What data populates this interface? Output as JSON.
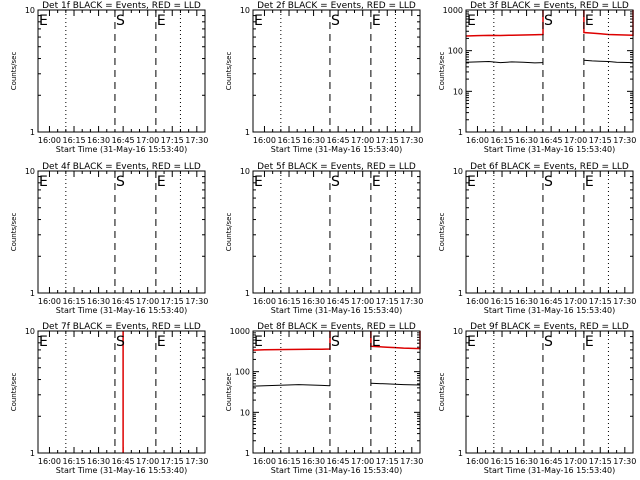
{
  "chart_data": [
    {
      "type": "line",
      "title": "Det 1f BLACK = Events, RED = LLD",
      "xlabel": "Start Time (31-May-16 15:53:40)",
      "ylabel": "Counts/sec",
      "scale_y": "log",
      "ylim": [
        1,
        10
      ],
      "ytick_labels": [
        "1",
        "10"
      ],
      "xlim": [
        "15:53",
        "17:35"
      ],
      "xtick_labels": [
        "16:00",
        "16:15",
        "16:30",
        "16:45",
        "17:00",
        "17:15",
        "17:30"
      ],
      "markers": [
        {
          "label": "E",
          "time": "15:53",
          "style": "none"
        },
        {
          "label": "",
          "time": "16:10",
          "style": "dotted"
        },
        {
          "label": "S",
          "time": "16:40",
          "style": "dashed"
        },
        {
          "label": "E",
          "time": "17:05",
          "style": "dashed"
        },
        {
          "label": "",
          "time": "17:20",
          "style": "dotted"
        }
      ],
      "series": []
    },
    {
      "type": "line",
      "title": "Det 2f BLACK = Events, RED = LLD",
      "xlabel": "Start Time (31-May-16 15:53:40)",
      "ylabel": "Counts/sec",
      "scale_y": "log",
      "ylim": [
        1,
        10
      ],
      "ytick_labels": [
        "1",
        "10"
      ],
      "xlim": [
        "15:53",
        "17:35"
      ],
      "xtick_labels": [
        "16:00",
        "16:15",
        "16:30",
        "16:45",
        "17:00",
        "17:15",
        "17:30"
      ],
      "markers": [
        {
          "label": "E",
          "time": "15:53",
          "style": "none"
        },
        {
          "label": "",
          "time": "16:10",
          "style": "dotted"
        },
        {
          "label": "S",
          "time": "16:40",
          "style": "dashed"
        },
        {
          "label": "E",
          "time": "17:05",
          "style": "dashed"
        },
        {
          "label": "",
          "time": "17:20",
          "style": "dotted"
        }
      ],
      "series": []
    },
    {
      "type": "line",
      "title": "Det 3f BLACK = Events, RED = LLD",
      "xlabel": "Start Time (31-May-16 15:53:40)",
      "ylabel": "Counts/sec",
      "scale_y": "log",
      "ylim": [
        1,
        1000
      ],
      "ytick_labels": [
        "1",
        "10",
        "100",
        "1000"
      ],
      "xlim": [
        "15:53",
        "17:35"
      ],
      "xtick_labels": [
        "16:00",
        "16:15",
        "16:30",
        "16:45",
        "17:00",
        "17:15",
        "17:30"
      ],
      "markers": [
        {
          "label": "E",
          "time": "15:53",
          "style": "none"
        },
        {
          "label": "",
          "time": "16:10",
          "style": "dotted"
        },
        {
          "label": "S",
          "time": "16:40",
          "style": "dashed"
        },
        {
          "label": "E",
          "time": "17:05",
          "style": "dashed"
        },
        {
          "label": "",
          "time": "17:20",
          "style": "dotted"
        }
      ],
      "series": [
        {
          "color": "#000000",
          "segments": [
            {
              "x": [
                "15:53",
                "16:00",
                "16:07",
                "16:14",
                "16:21",
                "16:28",
                "16:35",
                "16:40"
              ],
              "y": [
                52,
                53,
                54,
                51,
                53,
                52,
                50,
                51
              ]
            },
            {
              "x": [
                "17:05",
                "17:10",
                "17:15",
                "17:20",
                "17:25",
                "17:35"
              ],
              "y": [
                58,
                56,
                55,
                54,
                52,
                51
              ]
            }
          ]
        },
        {
          "color": "#dd0000",
          "segments": [
            {
              "x": [
                "15:53",
                "16:00",
                "16:07",
                "16:14",
                "16:21",
                "16:28",
                "16:35",
                "16:40",
                "16:40"
              ],
              "y": [
                230,
                235,
                238,
                236,
                240,
                243,
                245,
                250,
                1000
              ]
            },
            {
              "x": [
                "17:05",
                "17:05",
                "17:10",
                "17:15",
                "17:20",
                "17:25",
                "17:35",
                "17:35"
              ],
              "y": [
                1000,
                280,
                270,
                260,
                250,
                245,
                240,
                1000
              ]
            }
          ]
        }
      ]
    },
    {
      "type": "line",
      "title": "Det 4f BLACK = Events, RED = LLD",
      "xlabel": "Start Time (31-May-16 15:53:40)",
      "ylabel": "Counts/sec",
      "scale_y": "log",
      "ylim": [
        1,
        10
      ],
      "ytick_labels": [
        "1",
        "10"
      ],
      "xlim": [
        "15:53",
        "17:35"
      ],
      "xtick_labels": [
        "16:00",
        "16:15",
        "16:30",
        "16:45",
        "17:00",
        "17:15",
        "17:30"
      ],
      "markers": [
        {
          "label": "E",
          "time": "15:53",
          "style": "none"
        },
        {
          "label": "",
          "time": "16:10",
          "style": "dotted"
        },
        {
          "label": "S",
          "time": "16:40",
          "style": "dashed"
        },
        {
          "label": "E",
          "time": "17:05",
          "style": "dashed"
        },
        {
          "label": "",
          "time": "17:20",
          "style": "dotted"
        }
      ],
      "series": []
    },
    {
      "type": "line",
      "title": "Det 5f BLACK = Events, RED = LLD",
      "xlabel": "Start Time (31-May-16 15:53:40)",
      "ylabel": "Counts/sec",
      "scale_y": "log",
      "ylim": [
        1,
        10
      ],
      "ytick_labels": [
        "1",
        "10"
      ],
      "xlim": [
        "15:53",
        "17:35"
      ],
      "xtick_labels": [
        "16:00",
        "16:15",
        "16:30",
        "16:45",
        "17:00",
        "17:15",
        "17:30"
      ],
      "markers": [
        {
          "label": "E",
          "time": "15:53",
          "style": "none"
        },
        {
          "label": "",
          "time": "16:10",
          "style": "dotted"
        },
        {
          "label": "S",
          "time": "16:40",
          "style": "dashed"
        },
        {
          "label": "E",
          "time": "17:05",
          "style": "dashed"
        },
        {
          "label": "",
          "time": "17:20",
          "style": "dotted"
        }
      ],
      "series": []
    },
    {
      "type": "line",
      "title": "Det 6f BLACK = Events, RED = LLD",
      "xlabel": "Start Time (31-May-16 15:53:40)",
      "ylabel": "Counts/sec",
      "scale_y": "log",
      "ylim": [
        1,
        10
      ],
      "ytick_labels": [
        "1",
        "10"
      ],
      "xlim": [
        "15:53",
        "17:35"
      ],
      "xtick_labels": [
        "16:00",
        "16:15",
        "16:30",
        "16:45",
        "17:00",
        "17:15",
        "17:30"
      ],
      "markers": [
        {
          "label": "E",
          "time": "15:53",
          "style": "none"
        },
        {
          "label": "",
          "time": "16:10",
          "style": "dotted"
        },
        {
          "label": "S",
          "time": "16:40",
          "style": "dashed"
        },
        {
          "label": "E",
          "time": "17:05",
          "style": "dashed"
        },
        {
          "label": "",
          "time": "17:20",
          "style": "dotted"
        }
      ],
      "series": []
    },
    {
      "type": "line",
      "title": "Det 7f BLACK = Events, RED = LLD",
      "xlabel": "Start Time (31-May-16 15:53:40)",
      "ylabel": "Counts/sec",
      "scale_y": "log",
      "ylim": [
        1,
        10
      ],
      "ytick_labels": [
        "1",
        "10"
      ],
      "xlim": [
        "15:53",
        "17:35"
      ],
      "xtick_labels": [
        "16:00",
        "16:15",
        "16:30",
        "16:45",
        "17:00",
        "17:15",
        "17:30"
      ],
      "markers": [
        {
          "label": "E",
          "time": "15:53",
          "style": "none"
        },
        {
          "label": "",
          "time": "16:10",
          "style": "dotted"
        },
        {
          "label": "S",
          "time": "16:40",
          "style": "dashed"
        },
        {
          "label": "E",
          "time": "17:05",
          "style": "dashed"
        },
        {
          "label": "",
          "time": "17:20",
          "style": "dotted"
        }
      ],
      "series": [
        {
          "color": "#dd0000",
          "segments": [
            {
              "x": [
                "16:45",
                "16:45"
              ],
              "y": [
                1,
                10
              ]
            }
          ]
        }
      ]
    },
    {
      "type": "line",
      "title": "Det 8f BLACK = Events, RED = LLD",
      "xlabel": "Start Time (31-May-16 15:53:40)",
      "ylabel": "Counts/sec",
      "scale_y": "log",
      "ylim": [
        1,
        1000
      ],
      "ytick_labels": [
        "1",
        "10",
        "100",
        "1000"
      ],
      "xlim": [
        "15:53",
        "17:35"
      ],
      "xtick_labels": [
        "16:00",
        "16:15",
        "16:30",
        "16:45",
        "17:00",
        "17:15",
        "17:30"
      ],
      "markers": [
        {
          "label": "E",
          "time": "15:53",
          "style": "none"
        },
        {
          "label": "",
          "time": "16:10",
          "style": "dotted"
        },
        {
          "label": "S",
          "time": "16:40",
          "style": "dashed"
        },
        {
          "label": "E",
          "time": "17:05",
          "style": "dashed"
        },
        {
          "label": "",
          "time": "17:20",
          "style": "dotted"
        }
      ],
      "series": [
        {
          "color": "#000000",
          "segments": [
            {
              "x": [
                "15:53",
                "16:00",
                "16:07",
                "16:14",
                "16:21",
                "16:28",
                "16:35",
                "16:40"
              ],
              "y": [
                44,
                45,
                46,
                47,
                48,
                47,
                46,
                45
              ]
            },
            {
              "x": [
                "17:05",
                "17:10",
                "17:15",
                "17:20",
                "17:25",
                "17:35"
              ],
              "y": [
                52,
                51,
                50,
                49,
                48,
                47
              ]
            }
          ]
        },
        {
          "color": "#dd0000",
          "segments": [
            {
              "x": [
                "15:53",
                "16:00",
                "16:07",
                "16:14",
                "16:21",
                "16:28",
                "16:35",
                "16:40",
                "16:40"
              ],
              "y": [
                340,
                345,
                348,
                350,
                352,
                355,
                357,
                360,
                1000
              ]
            },
            {
              "x": [
                "17:05",
                "17:05",
                "17:10",
                "17:15",
                "17:20",
                "17:25",
                "17:35",
                "17:35"
              ],
              "y": [
                1000,
                420,
                410,
                400,
                390,
                380,
                370,
                1000
              ]
            }
          ]
        }
      ]
    },
    {
      "type": "line",
      "title": "Det 9f BLACK = Events, RED = LLD",
      "xlabel": "Start Time (31-May-16 15:53:40)",
      "ylabel": "Counts/sec",
      "scale_y": "log",
      "ylim": [
        1,
        10
      ],
      "ytick_labels": [
        "1",
        "10"
      ],
      "xlim": [
        "15:53",
        "17:35"
      ],
      "xtick_labels": [
        "16:00",
        "16:15",
        "16:30",
        "16:45",
        "17:00",
        "17:15",
        "17:30"
      ],
      "markers": [
        {
          "label": "E",
          "time": "15:53",
          "style": "none"
        },
        {
          "label": "",
          "time": "16:10",
          "style": "dotted"
        },
        {
          "label": "S",
          "time": "16:40",
          "style": "dashed"
        },
        {
          "label": "E",
          "time": "17:05",
          "style": "dashed"
        },
        {
          "label": "",
          "time": "17:20",
          "style": "dotted"
        }
      ],
      "series": []
    }
  ]
}
